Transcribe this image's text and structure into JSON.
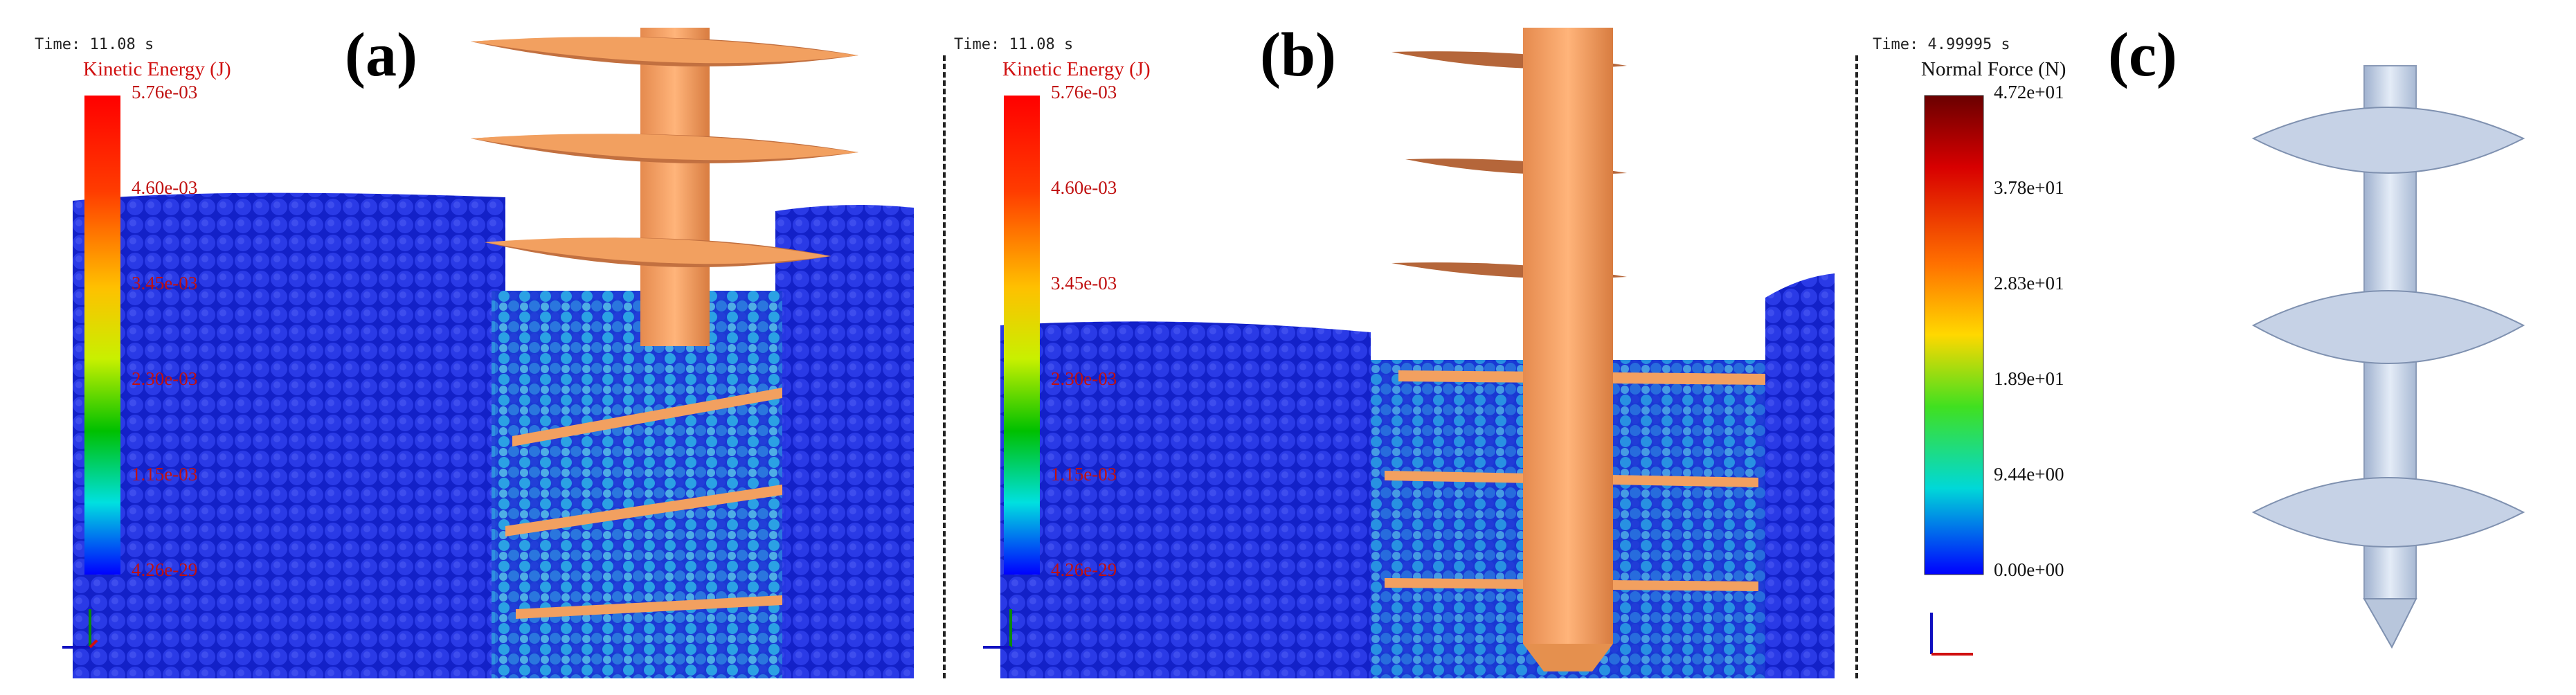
{
  "panels": [
    {
      "label": "(a)",
      "time": "Time: 11.08 s",
      "colorbar_title": "Kinetic Energy (J)",
      "ticks": [
        "5.76e-03",
        "4.60e-03",
        "3.45e-03",
        "2.30e-03",
        "1.15e-03",
        "4.26e-29"
      ]
    },
    {
      "label": "(b)",
      "time": "Time: 11.08 s",
      "colorbar_title": "Kinetic Energy (J)",
      "ticks": [
        "5.76e-03",
        "4.60e-03",
        "3.45e-03",
        "2.30e-03",
        "1.15e-03",
        "4.26e-29"
      ]
    },
    {
      "label": "(c)",
      "time": "Time: 4.99995 s",
      "colorbar_title": "Normal Force (N)",
      "ticks": [
        "4.72e+01",
        "3.78e+01",
        "2.83e+01",
        "1.89e+01",
        "9.44e+00",
        "0.00e+00"
      ]
    }
  ],
  "colors": {
    "particles": "#1a28d8",
    "auger": "#f2a060",
    "auger_shadow": "#b5663a",
    "shaft_metal": "#c8d4e6"
  }
}
